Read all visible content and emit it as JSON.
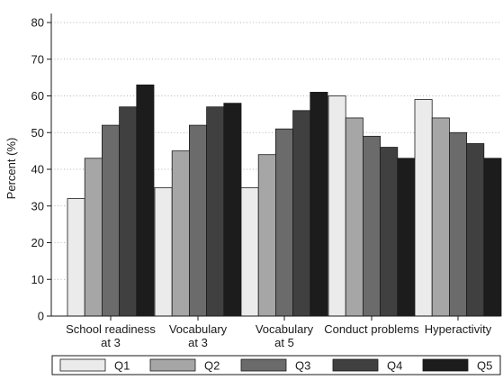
{
  "chart_data": {
    "type": "bar",
    "title": "",
    "xlabel": "",
    "ylabel": "Percent (%)",
    "ylim": [
      0,
      80
    ],
    "yticks": [
      0,
      10,
      20,
      30,
      40,
      50,
      60,
      70,
      80
    ],
    "grid": "horizontal dotted",
    "legend_placement": "bottom",
    "categories": [
      [
        "School readiness",
        "at 3"
      ],
      [
        "Vocabulary",
        "at 3"
      ],
      [
        "Vocabulary",
        "at 5"
      ],
      [
        "Conduct problems"
      ],
      [
        "Hyperactivity"
      ]
    ],
    "series": [
      {
        "name": "Q1",
        "color": "#ebebeb",
        "values": [
          32,
          35,
          35,
          60,
          59
        ]
      },
      {
        "name": "Q2",
        "color": "#a6a6a6",
        "values": [
          43,
          45,
          44,
          54,
          54
        ]
      },
      {
        "name": "Q3",
        "color": "#6b6b6b",
        "values": [
          52,
          52,
          51,
          49,
          50
        ]
      },
      {
        "name": "Q4",
        "color": "#404040",
        "values": [
          57,
          57,
          56,
          46,
          47
        ]
      },
      {
        "name": "Q5",
        "color": "#1c1c1c",
        "values": [
          63,
          58,
          61,
          43,
          43
        ]
      }
    ]
  }
}
